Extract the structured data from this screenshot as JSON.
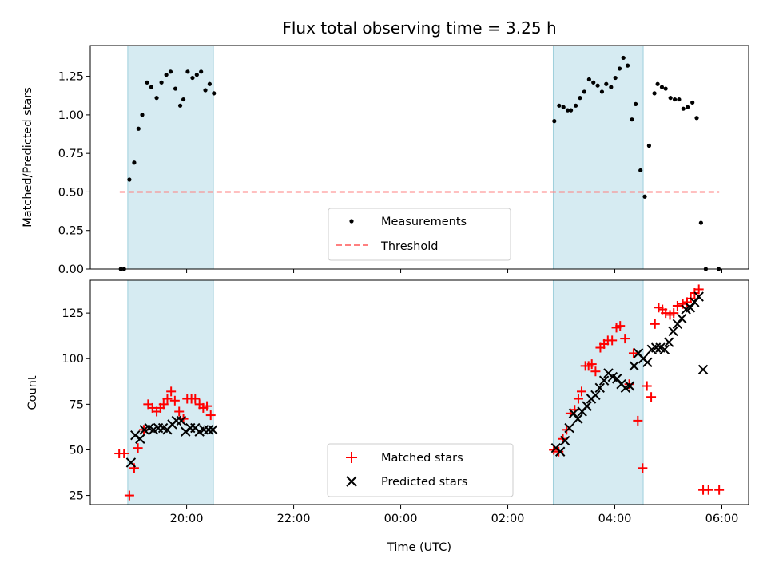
{
  "chart_data": [
    {
      "type": "scatter",
      "title": "Flux total observing time = 3.25 h",
      "xlabel": "",
      "ylabel": "Matched/Predicted stars",
      "x_unit": "hours relative to 00:00 UTC",
      "xlim": [
        -5.8,
        6.5
      ],
      "ylim": [
        0,
        1.45
      ],
      "yticks": [
        0.0,
        0.25,
        0.5,
        0.75,
        1.0,
        1.25
      ],
      "ytick_labels": [
        "0.00",
        "0.25",
        "0.50",
        "0.75",
        "1.00",
        "1.25"
      ],
      "legend": {
        "position": "lower-center",
        "entries": [
          "Measurements",
          "Threshold"
        ]
      },
      "shaded_intervals": [
        [
          -5.1,
          -3.5
        ],
        [
          2.85,
          4.53
        ]
      ],
      "threshold": {
        "name": "Threshold",
        "value": 0.5,
        "x_range": [
          -5.25,
          5.95
        ],
        "color": "#ff8080",
        "style": "dashed"
      },
      "series": [
        {
          "name": "Measurements",
          "color": "#000000",
          "marker": "dot",
          "points": [
            [
              -5.23,
              0.0
            ],
            [
              -5.17,
              0.0
            ],
            [
              -5.07,
              0.58
            ],
            [
              -4.98,
              0.69
            ],
            [
              -4.9,
              0.91
            ],
            [
              -4.83,
              1.0
            ],
            [
              -4.74,
              1.21
            ],
            [
              -4.66,
              1.18
            ],
            [
              -4.56,
              1.11
            ],
            [
              -4.47,
              1.21
            ],
            [
              -4.38,
              1.26
            ],
            [
              -4.3,
              1.28
            ],
            [
              -4.21,
              1.17
            ],
            [
              -4.12,
              1.06
            ],
            [
              -4.06,
              1.1
            ],
            [
              -3.98,
              1.28
            ],
            [
              -3.89,
              1.24
            ],
            [
              -3.81,
              1.26
            ],
            [
              -3.73,
              1.28
            ],
            [
              -3.65,
              1.16
            ],
            [
              -3.57,
              1.2
            ],
            [
              -3.49,
              1.14
            ],
            [
              2.87,
              0.96
            ],
            [
              2.96,
              1.06
            ],
            [
              3.04,
              1.05
            ],
            [
              3.12,
              1.03
            ],
            [
              3.18,
              1.03
            ],
            [
              3.27,
              1.06
            ],
            [
              3.35,
              1.11
            ],
            [
              3.43,
              1.15
            ],
            [
              3.52,
              1.23
            ],
            [
              3.6,
              1.21
            ],
            [
              3.68,
              1.19
            ],
            [
              3.76,
              1.15
            ],
            [
              3.84,
              1.2
            ],
            [
              3.93,
              1.18
            ],
            [
              4.01,
              1.24
            ],
            [
              4.09,
              1.3
            ],
            [
              4.16,
              1.37
            ],
            [
              4.24,
              1.32
            ],
            [
              4.32,
              0.97
            ],
            [
              4.39,
              1.07
            ],
            [
              4.48,
              0.64
            ],
            [
              4.56,
              0.47
            ],
            [
              4.64,
              0.8
            ],
            [
              4.74,
              1.14
            ],
            [
              4.8,
              1.2
            ],
            [
              4.88,
              1.18
            ],
            [
              4.95,
              1.17
            ],
            [
              5.04,
              1.11
            ],
            [
              5.12,
              1.1
            ],
            [
              5.2,
              1.1
            ],
            [
              5.28,
              1.04
            ],
            [
              5.36,
              1.05
            ],
            [
              5.45,
              1.08
            ],
            [
              5.53,
              0.98
            ],
            [
              5.61,
              0.3
            ],
            [
              5.7,
              0.0
            ],
            [
              5.94,
              0.0
            ]
          ]
        }
      ]
    },
    {
      "type": "scatter",
      "title": "",
      "xlabel": "Time (UTC)",
      "ylabel": "Count",
      "x_unit": "hours relative to 00:00 UTC",
      "xlim": [
        -5.8,
        6.5
      ],
      "ylim": [
        20,
        143
      ],
      "yticks": [
        25,
        50,
        75,
        100,
        125
      ],
      "ytick_labels": [
        "25",
        "50",
        "75",
        "100",
        "125"
      ],
      "xticks": [
        -4,
        -2,
        0,
        2,
        4,
        6
      ],
      "xtick_labels": [
        "20:00",
        "22:00",
        "00:00",
        "02:00",
        "04:00",
        "06:00"
      ],
      "legend": {
        "position": "lower-center",
        "entries": [
          "Matched stars",
          "Predicted stars"
        ]
      },
      "shaded_intervals": [
        [
          -5.1,
          -3.5
        ],
        [
          2.85,
          4.53
        ]
      ],
      "series": [
        {
          "name": "Matched stars",
          "color": "#ff0000",
          "marker": "plus",
          "points": [
            [
              -5.26,
              48
            ],
            [
              -5.17,
              48
            ],
            [
              -5.07,
              25
            ],
            [
              -4.98,
              40
            ],
            [
              -4.91,
              51
            ],
            [
              -4.8,
              61
            ],
            [
              -4.72,
              75
            ],
            [
              -4.64,
              73
            ],
            [
              -4.56,
              71
            ],
            [
              -4.49,
              73
            ],
            [
              -4.43,
              75
            ],
            [
              -4.36,
              78
            ],
            [
              -4.29,
              82
            ],
            [
              -4.22,
              77
            ],
            [
              -4.14,
              71
            ],
            [
              -4.06,
              67
            ],
            [
              -3.99,
              78
            ],
            [
              -3.91,
              78
            ],
            [
              -3.84,
              78
            ],
            [
              -3.76,
              75
            ],
            [
              -3.69,
              73
            ],
            [
              -3.62,
              74
            ],
            [
              -3.55,
              69
            ],
            [
              2.86,
              50
            ],
            [
              2.95,
              49
            ],
            [
              3.03,
              56
            ],
            [
              3.1,
              61
            ],
            [
              3.17,
              70
            ],
            [
              3.25,
              72
            ],
            [
              3.32,
              78
            ],
            [
              3.38,
              82
            ],
            [
              3.45,
              96
            ],
            [
              3.51,
              96
            ],
            [
              3.57,
              97
            ],
            [
              3.64,
              93
            ],
            [
              3.73,
              106
            ],
            [
              3.8,
              108
            ],
            [
              3.87,
              110
            ],
            [
              3.95,
              110
            ],
            [
              4.03,
              117
            ],
            [
              4.1,
              118
            ],
            [
              4.19,
              111
            ],
            [
              4.27,
              86
            ],
            [
              4.35,
              103
            ],
            [
              4.43,
              66
            ],
            [
              4.52,
              40
            ],
            [
              4.6,
              85
            ],
            [
              4.68,
              79
            ],
            [
              4.75,
              119
            ],
            [
              4.82,
              128
            ],
            [
              4.89,
              127
            ],
            [
              4.95,
              125
            ],
            [
              5.03,
              124
            ],
            [
              5.1,
              125
            ],
            [
              5.17,
              129
            ],
            [
              5.27,
              130
            ],
            [
              5.35,
              131
            ],
            [
              5.42,
              133
            ],
            [
              5.49,
              136
            ],
            [
              5.57,
              138
            ],
            [
              5.65,
              28
            ],
            [
              5.75,
              28
            ],
            [
              5.95,
              28
            ]
          ]
        },
        {
          "name": "Predicted stars",
          "color": "#000000",
          "marker": "x",
          "points": [
            [
              -5.04,
              43
            ],
            [
              -4.96,
              58
            ],
            [
              -4.87,
              56
            ],
            [
              -4.79,
              61
            ],
            [
              -4.7,
              62
            ],
            [
              -4.62,
              61
            ],
            [
              -4.53,
              62
            ],
            [
              -4.44,
              62
            ],
            [
              -4.36,
              61
            ],
            [
              -4.27,
              64
            ],
            [
              -4.19,
              66
            ],
            [
              -4.1,
              66
            ],
            [
              -4.02,
              60
            ],
            [
              -3.93,
              62
            ],
            [
              -3.84,
              62
            ],
            [
              -3.76,
              60
            ],
            [
              -3.68,
              61
            ],
            [
              -3.59,
              61
            ],
            [
              -3.51,
              61
            ],
            [
              2.9,
              51
            ],
            [
              2.98,
              49
            ],
            [
              3.07,
              55
            ],
            [
              3.15,
              62
            ],
            [
              3.23,
              70
            ],
            [
              3.31,
              67
            ],
            [
              3.39,
              71
            ],
            [
              3.48,
              74
            ],
            [
              3.56,
              78
            ],
            [
              3.64,
              80
            ],
            [
              3.72,
              84
            ],
            [
              3.8,
              88
            ],
            [
              3.88,
              92
            ],
            [
              3.96,
              90
            ],
            [
              4.04,
              89
            ],
            [
              4.12,
              86
            ],
            [
              4.2,
              84
            ],
            [
              4.28,
              85
            ],
            [
              4.36,
              96
            ],
            [
              4.44,
              103
            ],
            [
              4.53,
              100
            ],
            [
              4.61,
              98
            ],
            [
              4.69,
              105
            ],
            [
              4.77,
              106
            ],
            [
              4.85,
              106
            ],
            [
              4.93,
              105
            ],
            [
              5.01,
              109
            ],
            [
              5.09,
              115
            ],
            [
              5.17,
              119
            ],
            [
              5.25,
              122
            ],
            [
              5.33,
              127
            ],
            [
              5.41,
              128
            ],
            [
              5.49,
              131
            ],
            [
              5.57,
              134
            ],
            [
              5.65,
              94
            ]
          ]
        }
      ]
    }
  ]
}
